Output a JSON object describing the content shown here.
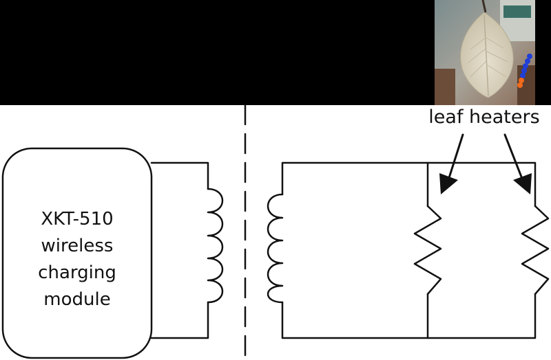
{
  "module": {
    "lines": [
      "XKT-510",
      "wireless",
      "charging",
      "module"
    ]
  },
  "heaters_label": "leaf heaters",
  "colors": {
    "background_band": "#000000",
    "wire": "#111111",
    "leaf": "#dcd5c2",
    "tube_blue": "#1f3fd6",
    "tube_orange": "#f26a1b"
  },
  "icons": {
    "leaf_photo": "leaf-photo",
    "coil": "inductor-coil-icon",
    "resistor": "resistor-icon",
    "arrow": "arrow-icon"
  }
}
